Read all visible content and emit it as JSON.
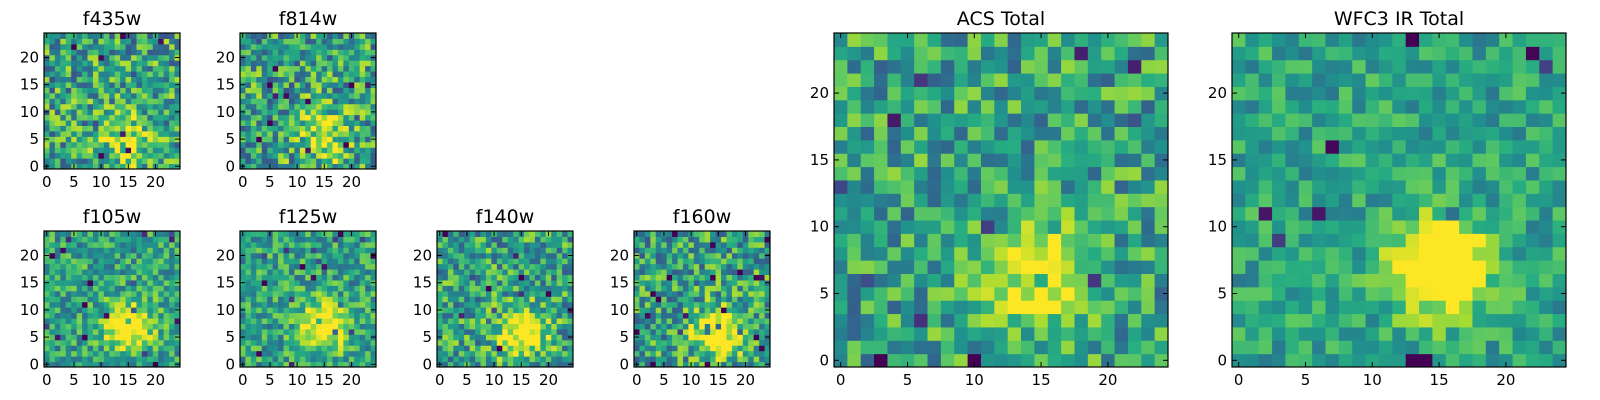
{
  "chart_data": [
    {
      "type": "heatmap",
      "title": "f435w",
      "xticks": [
        0,
        5,
        10,
        15,
        20
      ],
      "yticks": [
        0,
        5,
        10,
        15,
        20
      ],
      "xlim": [
        0,
        25
      ],
      "ylim": [
        0,
        25
      ],
      "grid_size": 25,
      "colormap": "viridis",
      "source_peak": [
        15,
        5
      ],
      "noise": 0.55,
      "source_strength": 0.35,
      "source_sigma": 3.5,
      "seed": 11
    },
    {
      "type": "heatmap",
      "title": "f814w",
      "xticks": [
        0,
        5,
        10,
        15,
        20
      ],
      "yticks": [
        0,
        5,
        10,
        15,
        20
      ],
      "xlim": [
        0,
        25
      ],
      "ylim": [
        0,
        25
      ],
      "grid_size": 25,
      "colormap": "viridis",
      "source_peak": [
        15,
        6
      ],
      "noise": 0.55,
      "source_strength": 0.35,
      "source_sigma": 3.5,
      "seed": 23
    },
    {
      "type": "heatmap",
      "title": "f105w",
      "xticks": [
        0,
        5,
        10,
        15,
        20
      ],
      "yticks": [
        0,
        5,
        10,
        15,
        20
      ],
      "xlim": [
        0,
        25
      ],
      "ylim": [
        0,
        25
      ],
      "grid_size": 25,
      "colormap": "viridis",
      "source_peak": [
        15,
        7
      ],
      "noise": 0.4,
      "source_strength": 0.6,
      "source_sigma": 3.0,
      "seed": 37
    },
    {
      "type": "heatmap",
      "title": "f125w",
      "xticks": [
        0,
        5,
        10,
        15,
        20
      ],
      "yticks": [
        0,
        5,
        10,
        15,
        20
      ],
      "xlim": [
        0,
        25
      ],
      "ylim": [
        0,
        25
      ],
      "grid_size": 25,
      "colormap": "viridis",
      "source_peak": [
        15,
        7
      ],
      "noise": 0.4,
      "source_strength": 0.6,
      "source_sigma": 3.0,
      "seed": 41
    },
    {
      "type": "heatmap",
      "title": "f140w",
      "xticks": [
        0,
        5,
        10,
        15,
        20
      ],
      "yticks": [
        0,
        5,
        10,
        15,
        20
      ],
      "xlim": [
        0,
        25
      ],
      "ylim": [
        0,
        25
      ],
      "grid_size": 25,
      "colormap": "viridis",
      "source_peak": [
        15,
        6
      ],
      "noise": 0.5,
      "source_strength": 0.6,
      "source_sigma": 3.0,
      "seed": 53
    },
    {
      "type": "heatmap",
      "title": "f160w",
      "xticks": [
        0,
        5,
        10,
        15,
        20
      ],
      "yticks": [
        0,
        5,
        10,
        15,
        20
      ],
      "xlim": [
        0,
        25
      ],
      "ylim": [
        0,
        25
      ],
      "grid_size": 25,
      "colormap": "viridis",
      "source_peak": [
        15,
        6
      ],
      "noise": 0.5,
      "source_strength": 0.6,
      "source_sigma": 3.0,
      "seed": 67
    },
    {
      "type": "heatmap",
      "title": "ACS Total",
      "xticks": [
        0,
        5,
        10,
        15,
        20
      ],
      "yticks": [
        0,
        5,
        10,
        15,
        20
      ],
      "xlim": [
        0,
        25
      ],
      "ylim": [
        0,
        25
      ],
      "grid_size": 25,
      "colormap": "viridis",
      "source_peak": [
        15,
        6
      ],
      "noise": 0.45,
      "source_strength": 0.45,
      "source_sigma": 3.0,
      "seed": 79
    },
    {
      "type": "heatmap",
      "title": "WFC3 IR Total",
      "xticks": [
        0,
        5,
        10,
        15,
        20
      ],
      "yticks": [
        0,
        5,
        10,
        15,
        20
      ],
      "xlim": [
        0,
        25
      ],
      "ylim": [
        0,
        25
      ],
      "grid_size": 25,
      "colormap": "viridis",
      "source_peak": [
        15,
        7
      ],
      "noise": 0.3,
      "source_strength": 0.75,
      "source_sigma": 2.5,
      "seed": 97
    }
  ]
}
